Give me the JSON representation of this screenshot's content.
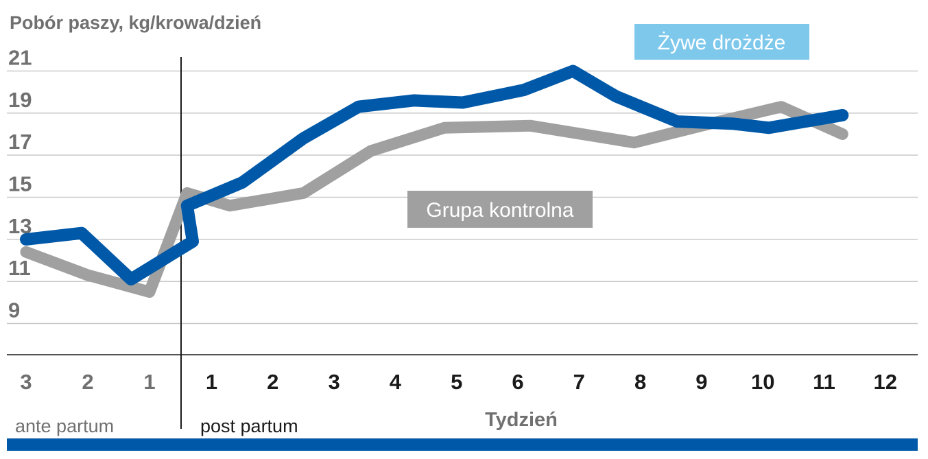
{
  "chart_data": {
    "type": "line",
    "ylabel": "Pobór paszy, kg/krowa/dzień",
    "xlabel": "Tydzień",
    "y_ticks": [
      21,
      19,
      17,
      15,
      13,
      11,
      9
    ],
    "ylim": [
      7.3,
      22
    ],
    "categories": [
      "3",
      "2",
      "1",
      "1",
      "2",
      "3",
      "4",
      "5",
      "6",
      "7",
      "8",
      "9",
      "10",
      "11",
      "12"
    ],
    "phases": {
      "ante": "ante partum",
      "post": "post partum"
    },
    "grid": true,
    "series": [
      {
        "name": "Grupa kontrolna",
        "color": "#a0a0a0",
        "points": [
          {
            "x": -3,
            "y": 12.4
          },
          {
            "x": -2,
            "y": 11.3
          },
          {
            "x": -1,
            "y": 10.5
          },
          {
            "x": 0.6,
            "y": 15.2
          },
          {
            "x": 1.3,
            "y": 14.6
          },
          {
            "x": 2.5,
            "y": 15.2
          },
          {
            "x": 3.6,
            "y": 17.2
          },
          {
            "x": 4.8,
            "y": 18.3
          },
          {
            "x": 6.2,
            "y": 18.4
          },
          {
            "x": 7.9,
            "y": 17.6
          },
          {
            "x": 9,
            "y": 18.4
          },
          {
            "x": 10.3,
            "y": 19.3
          },
          {
            "x": 11.3,
            "y": 18
          }
        ]
      },
      {
        "name": "Żywe drożdże",
        "color": "#0059a8",
        "points": [
          {
            "x": -3,
            "y": 13
          },
          {
            "x": -2.1,
            "y": 13.3
          },
          {
            "x": -1.3,
            "y": 11.1
          },
          {
            "x": -0.3,
            "y": 12.9
          },
          {
            "x": 0.6,
            "y": 14.6
          },
          {
            "x": 1.5,
            "y": 15.7
          },
          {
            "x": 2.5,
            "y": 17.8
          },
          {
            "x": 3.4,
            "y": 19.3
          },
          {
            "x": 4.3,
            "y": 19.6
          },
          {
            "x": 5.1,
            "y": 19.5
          },
          {
            "x": 6.1,
            "y": 20.1
          },
          {
            "x": 6.9,
            "y": 21
          },
          {
            "x": 7.6,
            "y": 19.8
          },
          {
            "x": 8.6,
            "y": 18.6
          },
          {
            "x": 9.5,
            "y": 18.5
          },
          {
            "x": 10.1,
            "y": 18.3
          },
          {
            "x": 11.3,
            "y": 18.9
          }
        ]
      }
    ],
    "legend": [
      {
        "label": "Żywe drożdże",
        "color": "#7ec8ec"
      },
      {
        "label": "Grupa kontrolna",
        "color": "#a0a0a0"
      }
    ],
    "bottom_bar_color": "#0059a8"
  }
}
